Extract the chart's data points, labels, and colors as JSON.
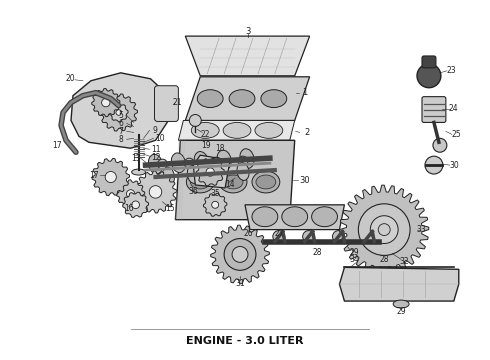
{
  "caption": "ENGINE - 3.0 LITER",
  "caption_fontsize": 8,
  "caption_fontweight": "bold",
  "background_color": "#ffffff",
  "fig_width": 4.9,
  "fig_height": 3.6,
  "dpi": 100,
  "line_color": "#222222",
  "gray_light": "#d8d8d8",
  "gray_mid": "#b8b8b8",
  "gray_dark": "#888888",
  "label_fontsize": 5.5
}
